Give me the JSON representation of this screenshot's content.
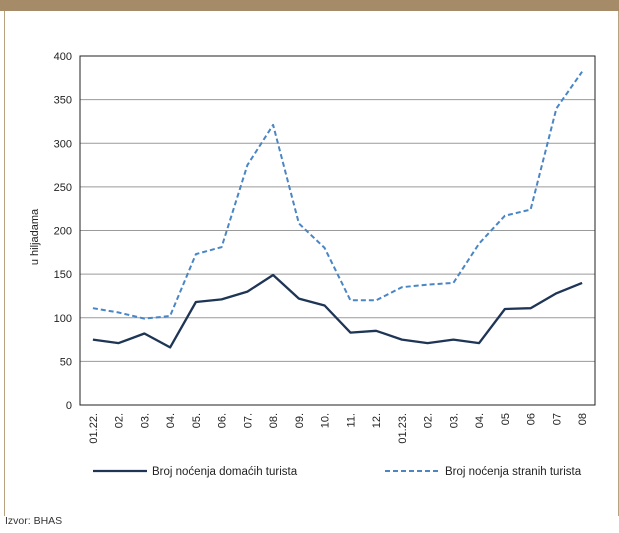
{
  "chart_data": {
    "type": "line",
    "ylabel": "u hiljadama",
    "ylim": [
      0,
      400
    ],
    "yticks": [
      0,
      50,
      100,
      150,
      200,
      250,
      300,
      350,
      400
    ],
    "categories": [
      "01.22.",
      "02.",
      "03.",
      "04.",
      "05.",
      "06.",
      "07.",
      "08.",
      "09.",
      "10.",
      "11.",
      "12.",
      "01.23.",
      "02.",
      "03.",
      "04.",
      "05",
      "06",
      "07",
      "08"
    ],
    "series": [
      {
        "name": "Broj noćenja domaćih turista",
        "color": "#1e3556",
        "style": "solid",
        "values": [
          75,
          71,
          82,
          66,
          118,
          121,
          130,
          149,
          122,
          114,
          83,
          85,
          75,
          71,
          75,
          71,
          110,
          111,
          128,
          140
        ]
      },
      {
        "name": "Broj noćenja stranih turista",
        "color": "#4a86c5",
        "style": "dashed",
        "values": [
          111,
          106,
          99,
          102,
          173,
          181,
          275,
          321,
          208,
          180,
          120,
          120,
          135,
          138,
          140,
          185,
          217,
          224,
          340,
          382
        ]
      }
    ],
    "grid": true,
    "legend": "bottom"
  },
  "source": "Izvor: BHAS"
}
